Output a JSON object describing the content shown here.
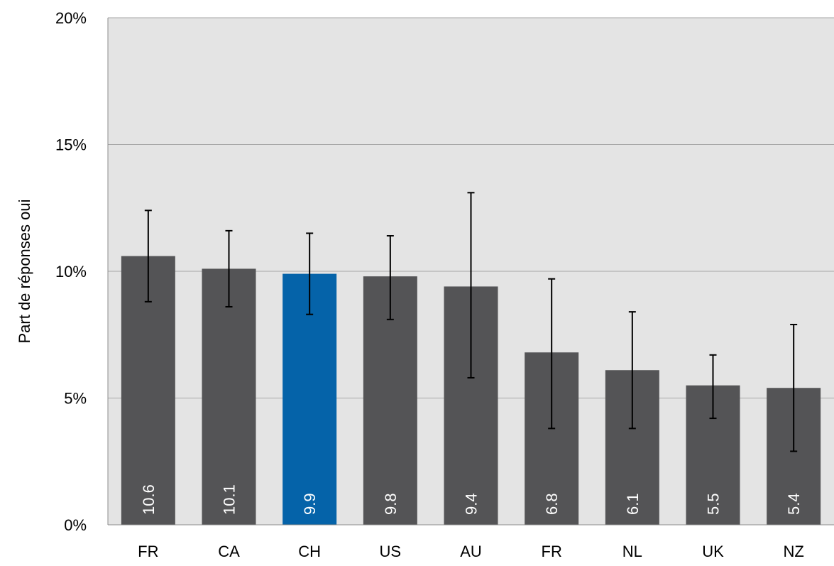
{
  "chart_data": {
    "type": "bar",
    "title": "",
    "xlabel": "",
    "ylabel": "Part de réponses oui",
    "ylim": [
      0,
      20
    ],
    "yticks": [
      0,
      5,
      10,
      15,
      20
    ],
    "ytick_labels": [
      "0%",
      "5%",
      "10%",
      "15%",
      "20%"
    ],
    "grid": true,
    "categories": [
      "FR",
      "CA",
      "CH",
      "US",
      "AU",
      "FR",
      "NL",
      "UK",
      "NZ"
    ],
    "values": [
      10.6,
      10.1,
      9.9,
      9.8,
      9.4,
      6.8,
      6.1,
      5.5,
      5.4
    ],
    "value_labels": [
      "10.6",
      "10.1",
      "9.9",
      "9.8",
      "9.4",
      "6.8",
      "6.1",
      "5.5",
      "5.4"
    ],
    "error_low": [
      8.8,
      8.6,
      8.3,
      8.1,
      5.8,
      3.8,
      3.8,
      4.2,
      2.9
    ],
    "error_high": [
      12.4,
      11.6,
      11.5,
      11.4,
      13.1,
      9.7,
      8.4,
      6.7,
      7.9
    ],
    "highlight_category_index": 2,
    "colors": {
      "bar": "#545456",
      "highlight": "#0563a9",
      "plot_background": "#e4e4e4",
      "grid": "#a6a6a6",
      "error_bar": "#000000",
      "value_label": "#ffffff",
      "text": "#000000"
    }
  }
}
